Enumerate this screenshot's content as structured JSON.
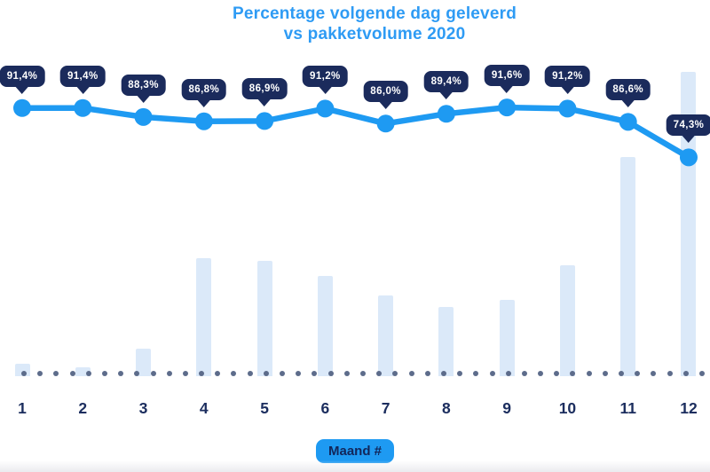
{
  "title": {
    "line1": "Percentage volgende dag geleverd",
    "line2": "vs pakketvolume 2020"
  },
  "x_axis": {
    "badge_label": "Maand #",
    "ticks": [
      "1",
      "2",
      "3",
      "4",
      "5",
      "6",
      "7",
      "8",
      "9",
      "10",
      "11",
      "12"
    ]
  },
  "colors": {
    "title": "#2e9bf4",
    "line": "#1e9af2",
    "tooltip_bg": "#1b2b5c",
    "tooltip_text": "#ffffff",
    "bar": "#dbe9f9",
    "baseline_dots": "#5d6c8b",
    "tick_text": "#1b2d5e",
    "badge_bg": "#1e9af2",
    "badge_text": "#12265a"
  },
  "chart_data": {
    "type": "line+bar",
    "title": "Percentage volgende dag geleverd vs pakketvolume 2020",
    "categories": [
      1,
      2,
      3,
      4,
      5,
      6,
      7,
      8,
      9,
      10,
      11,
      12
    ],
    "xlabel": "Maand #",
    "grid": false,
    "legend": "none",
    "series": [
      {
        "name": "Percentage volgende dag geleverd",
        "type": "line",
        "unit": "%",
        "values": [
          91.4,
          91.4,
          88.3,
          86.8,
          86.9,
          91.2,
          86.0,
          89.4,
          91.6,
          91.2,
          86.6,
          74.3
        ],
        "labels": [
          "91,4%",
          "91,4%",
          "88,3%",
          "86,8%",
          "86,9%",
          "91,2%",
          "86,0%",
          "89,4%",
          "91,6%",
          "91,2%",
          "86,6%",
          "74,3%"
        ],
        "ylim_est": [
          70,
          95
        ]
      },
      {
        "name": "Pakketvolume 2020",
        "type": "bar",
        "unit": "relative volume (% of max month, estimated from bar heights)",
        "values": [
          4.1,
          2.8,
          9.0,
          38.8,
          37.9,
          32.9,
          26.5,
          22.7,
          25.1,
          36.4,
          72.0,
          100.0
        ]
      }
    ]
  }
}
